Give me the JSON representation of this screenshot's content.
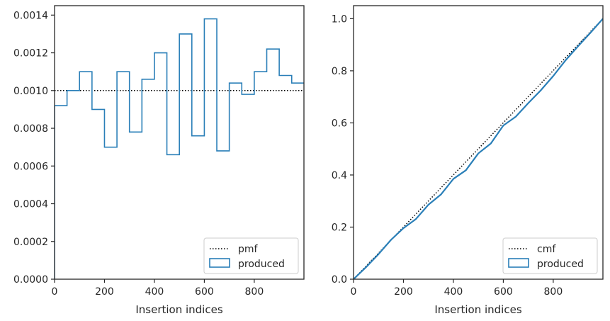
{
  "colors": {
    "series": "#2a7fb8",
    "reference": "#000000",
    "frame": "#262626",
    "legend_border": "#cccccc"
  },
  "chart_data": [
    {
      "type": "step-histogram",
      "xlabel": "Insertion indices",
      "ylabel": "",
      "xlim": [
        0,
        999
      ],
      "ylim": [
        0,
        0.00145
      ],
      "xticks": [
        0,
        200,
        400,
        600,
        800
      ],
      "xtick_labels": [
        "0",
        "200",
        "400",
        "600",
        "800"
      ],
      "yticks": [
        0,
        0.0002,
        0.0004,
        0.0006,
        0.0008,
        0.001,
        0.0012,
        0.0014
      ],
      "ytick_labels": [
        "0.0000",
        "0.0002",
        "0.0004",
        "0.0006",
        "0.0008",
        "0.0010",
        "0.0012",
        "0.0014"
      ],
      "grid": false,
      "legend_position": "lower right",
      "bin_edges": [
        0,
        50,
        100,
        150,
        200,
        250,
        300,
        350,
        400,
        450,
        500,
        550,
        600,
        650,
        700,
        750,
        800,
        850,
        900,
        950,
        1000
      ],
      "values": [
        0.00092,
        0.001,
        0.0011,
        0.0009,
        0.0007,
        0.0011,
        0.00078,
        0.00106,
        0.0012,
        0.00066,
        0.0013,
        0.00076,
        0.00138,
        0.00068,
        0.00104,
        0.00098,
        0.0011,
        0.00122,
        0.00108,
        0.00104
      ],
      "series": [
        {
          "name": "pmf",
          "style": "dotted",
          "y": 0.001
        },
        {
          "name": "produced",
          "style": "step"
        }
      ]
    },
    {
      "type": "line",
      "xlabel": "Insertion indices",
      "ylabel": "",
      "xlim": [
        0,
        999
      ],
      "ylim": [
        0,
        1.05
      ],
      "xticks": [
        0,
        200,
        400,
        600,
        800
      ],
      "xtick_labels": [
        "0",
        "200",
        "400",
        "600",
        "800"
      ],
      "yticks": [
        0,
        0.2,
        0.4,
        0.6,
        0.8,
        1.0
      ],
      "ytick_labels": [
        "0.0",
        "0.2",
        "0.4",
        "0.6",
        "0.8",
        "1.0"
      ],
      "grid": false,
      "legend_position": "lower right",
      "series": [
        {
          "name": "cmf",
          "style": "dotted",
          "x": [
            0,
            999
          ],
          "y": [
            0,
            1.0
          ]
        },
        {
          "name": "produced",
          "style": "solid",
          "x": [
            0,
            50,
            100,
            150,
            200,
            250,
            300,
            350,
            400,
            450,
            500,
            550,
            600,
            650,
            700,
            750,
            800,
            850,
            900,
            950,
            999
          ],
          "y": [
            0,
            0.046,
            0.096,
            0.151,
            0.196,
            0.231,
            0.286,
            0.325,
            0.385,
            0.418,
            0.483,
            0.521,
            0.59,
            0.624,
            0.676,
            0.725,
            0.78,
            0.841,
            0.895,
            0.947,
            1.0
          ]
        }
      ]
    }
  ]
}
